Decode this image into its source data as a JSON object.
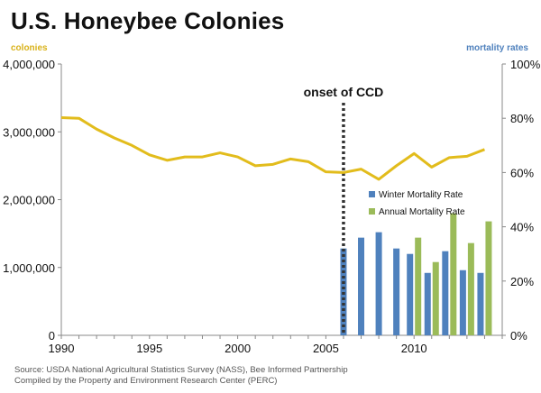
{
  "title": "U.S. Honeybee Colonies",
  "left_axis_unit": "colonies",
  "right_axis_unit": "mortality rates",
  "source_lines": [
    "Source:  USDA National Agricultural Statistics Survey (NASS), Bee Informed Partnership",
    "Compiled  by the Property and Environment  Research Center (PERC)"
  ],
  "colors": {
    "colonies_line": "#E2BC1C",
    "unit_text": "#D9B21A",
    "right_unit_text": "#4F81BD",
    "winter_bar": "#4F81BD",
    "annual_bar": "#9BBB59",
    "ccd_line": "#333333"
  },
  "chart_data": {
    "type": "line+bar",
    "x_range": [
      1990,
      2015
    ],
    "x_ticks": [
      1990,
      1995,
      2000,
      2005,
      2010
    ],
    "y_left": {
      "range": [
        0,
        4000000
      ],
      "ticks": [
        0,
        1000000,
        2000000,
        3000000,
        4000000
      ],
      "tick_labels": [
        "0",
        "1,000,000",
        "2,000,000",
        "3,000,000",
        "4,000,000"
      ]
    },
    "y_right": {
      "range": [
        0,
        100
      ],
      "ticks": [
        0,
        20,
        40,
        60,
        80,
        100
      ],
      "tick_labels": [
        "0%",
        "20%",
        "40%",
        "60%",
        "80%",
        "100%"
      ]
    },
    "colonies": {
      "x": [
        1990,
        1991,
        1992,
        1993,
        1994,
        1995,
        1996,
        1997,
        1998,
        1999,
        2000,
        2001,
        2002,
        2003,
        2004,
        2005,
        2006,
        2007,
        2008,
        2009,
        2010,
        2011,
        2012,
        2013,
        2014
      ],
      "y": [
        3210000,
        3200000,
        3040000,
        2910000,
        2800000,
        2660000,
        2580000,
        2630000,
        2630000,
        2690000,
        2630000,
        2500000,
        2520000,
        2600000,
        2560000,
        2410000,
        2400000,
        2450000,
        2300000,
        2500000,
        2680000,
        2480000,
        2620000,
        2640000,
        2740000
      ]
    },
    "series": [
      {
        "name": "Winter Mortality Rate",
        "x": [
          2006,
          2007,
          2008,
          2009,
          2010,
          2011,
          2012,
          2013,
          2014
        ],
        "values": [
          32,
          36,
          38,
          32,
          30,
          23,
          31,
          24,
          23
        ]
      },
      {
        "name": "Annual Mortality Rate",
        "x": [
          2010,
          2011,
          2012,
          2013,
          2014
        ],
        "values": [
          36,
          27,
          45,
          34,
          42
        ]
      }
    ],
    "annotation": {
      "x": 2006,
      "label": "onset of CCD"
    }
  }
}
